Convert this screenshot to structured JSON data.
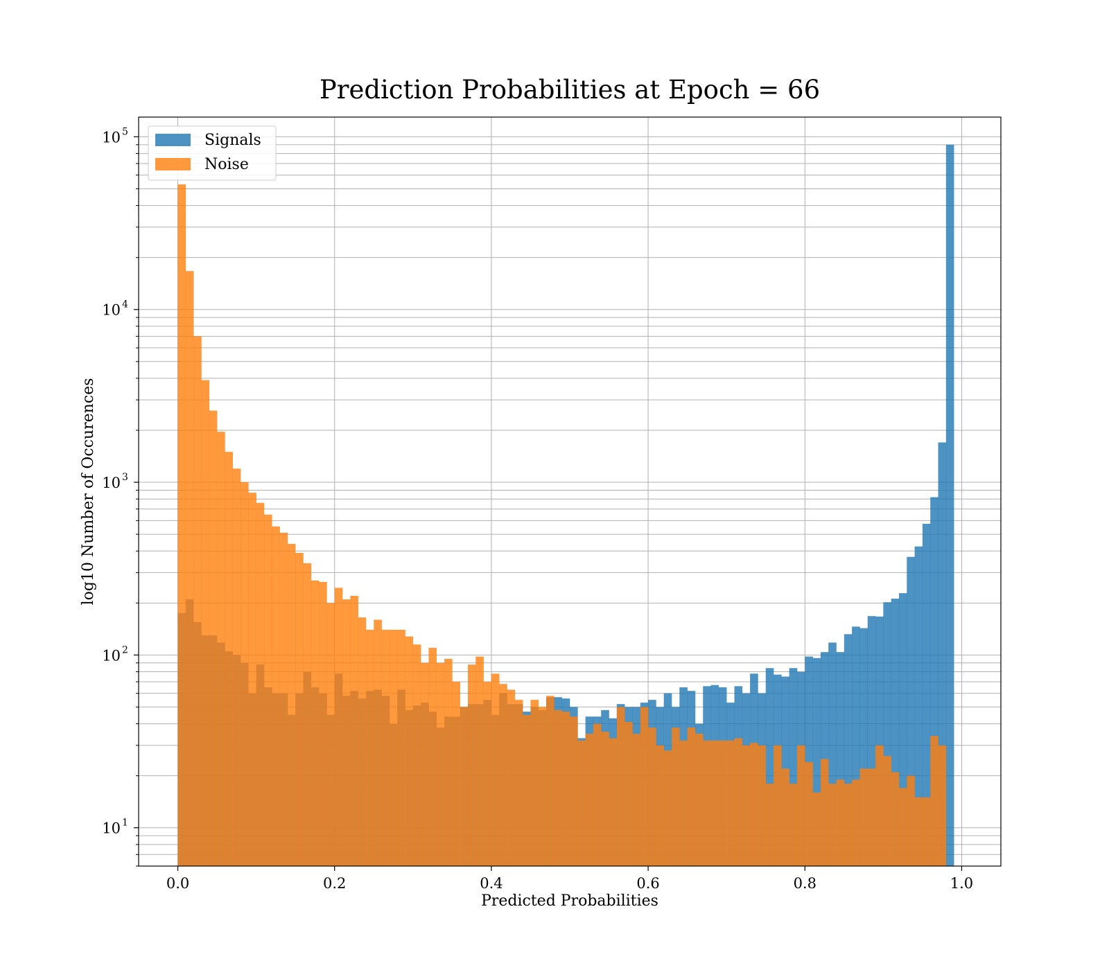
{
  "chart_data": {
    "type": "bar",
    "title": "Prediction Probabilities at Epoch = 66",
    "xlabel": "Predicted Probabilities",
    "ylabel": "log10 Number of Occurences",
    "xlim": [
      -0.05,
      1.05
    ],
    "ylim": [
      6,
      130000
    ],
    "yscale": "log",
    "grid": "on (major and minor y)",
    "legend_position": "upper-left",
    "x_ticks": [
      {
        "value": 0.0,
        "label": "0.0"
      },
      {
        "value": 0.2,
        "label": "0.2"
      },
      {
        "value": 0.4,
        "label": "0.4"
      },
      {
        "value": 0.6,
        "label": "0.6"
      },
      {
        "value": 0.8,
        "label": "0.8"
      },
      {
        "value": 1.0,
        "label": "1.0"
      }
    ],
    "y_ticks": [
      {
        "value": 10,
        "base": "10",
        "exp": "1"
      },
      {
        "value": 100,
        "base": "10",
        "exp": "2"
      },
      {
        "value": 1000,
        "base": "10",
        "exp": "3"
      },
      {
        "value": 10000,
        "base": "10",
        "exp": "4"
      },
      {
        "value": 100000,
        "base": "10",
        "exp": "5"
      }
    ],
    "bins": {
      "start": 0.0,
      "end": 1.0,
      "count": 100
    },
    "series": [
      {
        "name": "Signals",
        "color": "#1f77b4",
        "alpha": 0.8,
        "values": [
          175,
          210,
          155,
          130,
          130,
          118,
          105,
          100,
          90,
          60,
          88,
          65,
          60,
          60,
          45,
          60,
          80,
          65,
          60,
          45,
          78,
          58,
          62,
          56,
          62,
          63,
          58,
          40,
          63,
          48,
          51,
          53,
          47,
          38,
          44,
          44,
          50,
          52,
          52,
          55,
          45,
          60,
          52,
          52,
          47,
          50,
          48,
          57,
          57,
          56,
          50,
          33,
          44,
          44,
          48,
          43,
          52,
          50,
          50,
          53,
          55,
          50,
          60,
          50,
          65,
          62,
          40,
          66,
          67,
          65,
          53,
          66,
          60,
          78,
          60,
          84,
          77,
          75,
          84,
          80,
          98,
          96,
          104,
          118,
          104,
          132,
          146,
          143,
          168,
          167,
          202,
          212,
          228,
          370,
          425,
          575,
          820,
          1700,
          90000,
          0
        ]
      },
      {
        "name": "Noise",
        "color": "#ff7f0e",
        "alpha": 0.8,
        "values": [
          53000,
          16700,
          7000,
          3900,
          2600,
          1960,
          1500,
          1200,
          1000,
          870,
          760,
          650,
          555,
          510,
          440,
          390,
          340,
          270,
          265,
          200,
          245,
          210,
          220,
          165,
          140,
          160,
          140,
          140,
          140,
          128,
          115,
          90,
          110,
          90,
          95,
          70,
          50,
          88,
          98,
          70,
          78,
          68,
          63,
          55,
          45,
          55,
          50,
          58,
          48,
          47,
          44,
          32,
          35,
          40,
          36,
          33,
          50,
          41,
          35,
          50,
          38,
          30,
          28,
          38,
          32,
          38,
          35,
          32,
          32,
          32,
          32,
          33,
          30,
          31,
          30,
          18,
          30,
          22,
          18,
          30,
          24,
          16,
          25,
          18,
          19,
          18,
          19,
          22,
          22,
          30,
          26,
          21,
          17,
          20,
          15,
          15,
          34,
          30,
          0,
          0
        ]
      }
    ]
  }
}
